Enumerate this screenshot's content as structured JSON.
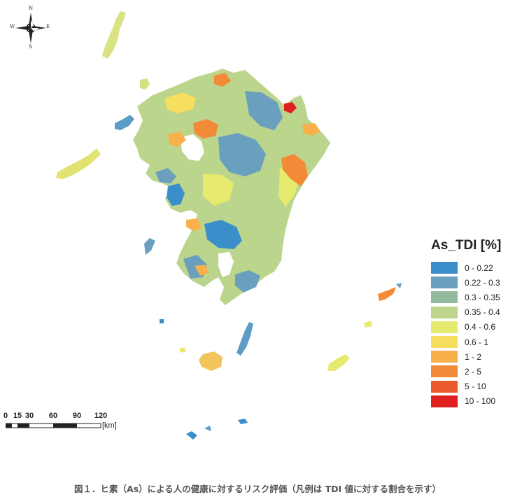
{
  "compass": {
    "north": "N",
    "south": "S",
    "east": "E",
    "west": "W"
  },
  "legend": {
    "title": "As_TDI [%]",
    "items": [
      {
        "label": "0 - 0.22",
        "color": "#3a8fcb"
      },
      {
        "label": "0.22 - 0.3",
        "color": "#6aa0be"
      },
      {
        "label": "0.3 - 0.35",
        "color": "#93b99e"
      },
      {
        "label": "0.35 - 0.4",
        "color": "#bfd48c"
      },
      {
        "label": "0.4 - 0.6",
        "color": "#e6ea6e"
      },
      {
        "label": "0.6 - 1",
        "color": "#f6de5e"
      },
      {
        "label": "1 - 2",
        "color": "#f7b04a"
      },
      {
        "label": "2 - 5",
        "color": "#f38a38"
      },
      {
        "label": "5 - 10",
        "color": "#eb5a2a"
      },
      {
        "label": "10 - 100",
        "color": "#e01f1f"
      }
    ]
  },
  "scale": {
    "ticks": [
      "0",
      "15",
      "30",
      "60",
      "90",
      "120"
    ],
    "unit": "[km]"
  },
  "caption": "図１．ヒ素（As）による人の健康に対するリスク評価（凡例は TDI 値に対する割合を示す）"
}
